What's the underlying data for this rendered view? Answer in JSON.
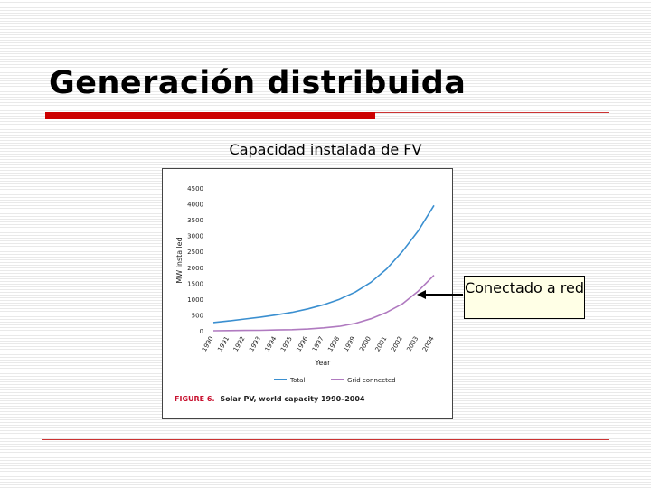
{
  "slide": {
    "title": "Generación distribuida",
    "subtitle": "Capacidad instalada de FV",
    "callout": "Conectado a red"
  },
  "colors": {
    "accent_red": "#cc0000",
    "total_line": "#3a8fd0",
    "grid_line": "#b07ac0",
    "caption_red": "#c8102e"
  },
  "chart_data": {
    "type": "line",
    "x": [
      1990,
      1991,
      1992,
      1993,
      1994,
      1995,
      1996,
      1997,
      1998,
      1999,
      2000,
      2001,
      2002,
      2003,
      2004
    ],
    "x_tick_labels": [
      "1990",
      "1991",
      "1992",
      "1993",
      "1994",
      "1995",
      "1996",
      "1997",
      "1998",
      "1999",
      "2000",
      "2001",
      "2002",
      "2003",
      "2004"
    ],
    "y_ticks": [
      0,
      500,
      1000,
      1500,
      2000,
      2500,
      3000,
      3500,
      4000,
      4500
    ],
    "ylim": [
      0,
      4500
    ],
    "xlabel": "Year",
    "ylabel": "MW installed",
    "series": [
      {
        "name": "Total",
        "color": "#3a8fd0",
        "values": [
          260,
          310,
          370,
          430,
          500,
          580,
          690,
          820,
          990,
          1220,
          1530,
          1950,
          2500,
          3150,
          3950
        ]
      },
      {
        "name": "Grid connected",
        "color": "#b07ac0",
        "values": [
          0,
          5,
          10,
          15,
          25,
          35,
          55,
          90,
          140,
          230,
          380,
          580,
          850,
          1250,
          1750
        ]
      }
    ],
    "legend_position": "bottom",
    "caption_label": "FIGURE 6.",
    "caption_text": "Solar PV, world capacity 1990–2004"
  }
}
